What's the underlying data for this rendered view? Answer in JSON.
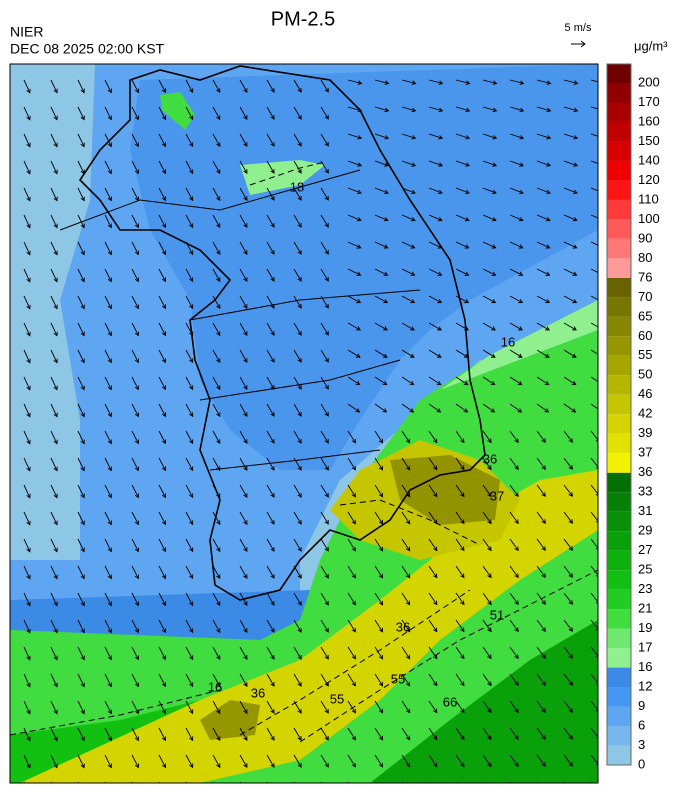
{
  "header": {
    "title": "PM-2.5",
    "source": "NIER",
    "datetime": "DEC 08 2025 02:00 KST",
    "wind_scale": "5 m/s"
  },
  "colorbar": {
    "unit": "μg/m³",
    "levels": [
      0,
      3,
      6,
      9,
      12,
      16,
      17,
      19,
      21,
      23,
      25,
      27,
      29,
      31,
      33,
      36,
      37,
      39,
      42,
      46,
      50,
      55,
      60,
      65,
      70,
      76,
      80,
      90,
      100,
      110,
      120,
      140,
      150,
      160,
      170,
      200
    ],
    "colors": [
      "#8ec6e6",
      "#78b6ee",
      "#5ea6f2",
      "#4496f0",
      "#3a8ae6",
      "#90f090",
      "#6ee86e",
      "#40dc40",
      "#22cc22",
      "#12c012",
      "#0eb00e",
      "#0aa00a",
      "#089008",
      "#068006",
      "#047004",
      "#f2f200",
      "#e2e200",
      "#d4d400",
      "#c6c600",
      "#b6b600",
      "#a6a600",
      "#969600",
      "#868600",
      "#767600",
      "#686200",
      "#ff9a9a",
      "#ff7878",
      "#ff5a5a",
      "#ff3a3a",
      "#ff1414",
      "#f00000",
      "#d80000",
      "#c00000",
      "#a80000",
      "#900000",
      "#700000"
    ]
  },
  "contour_labels": [
    18,
    16,
    36,
    37,
    36,
    51,
    16,
    36,
    55,
    55,
    66
  ]
}
